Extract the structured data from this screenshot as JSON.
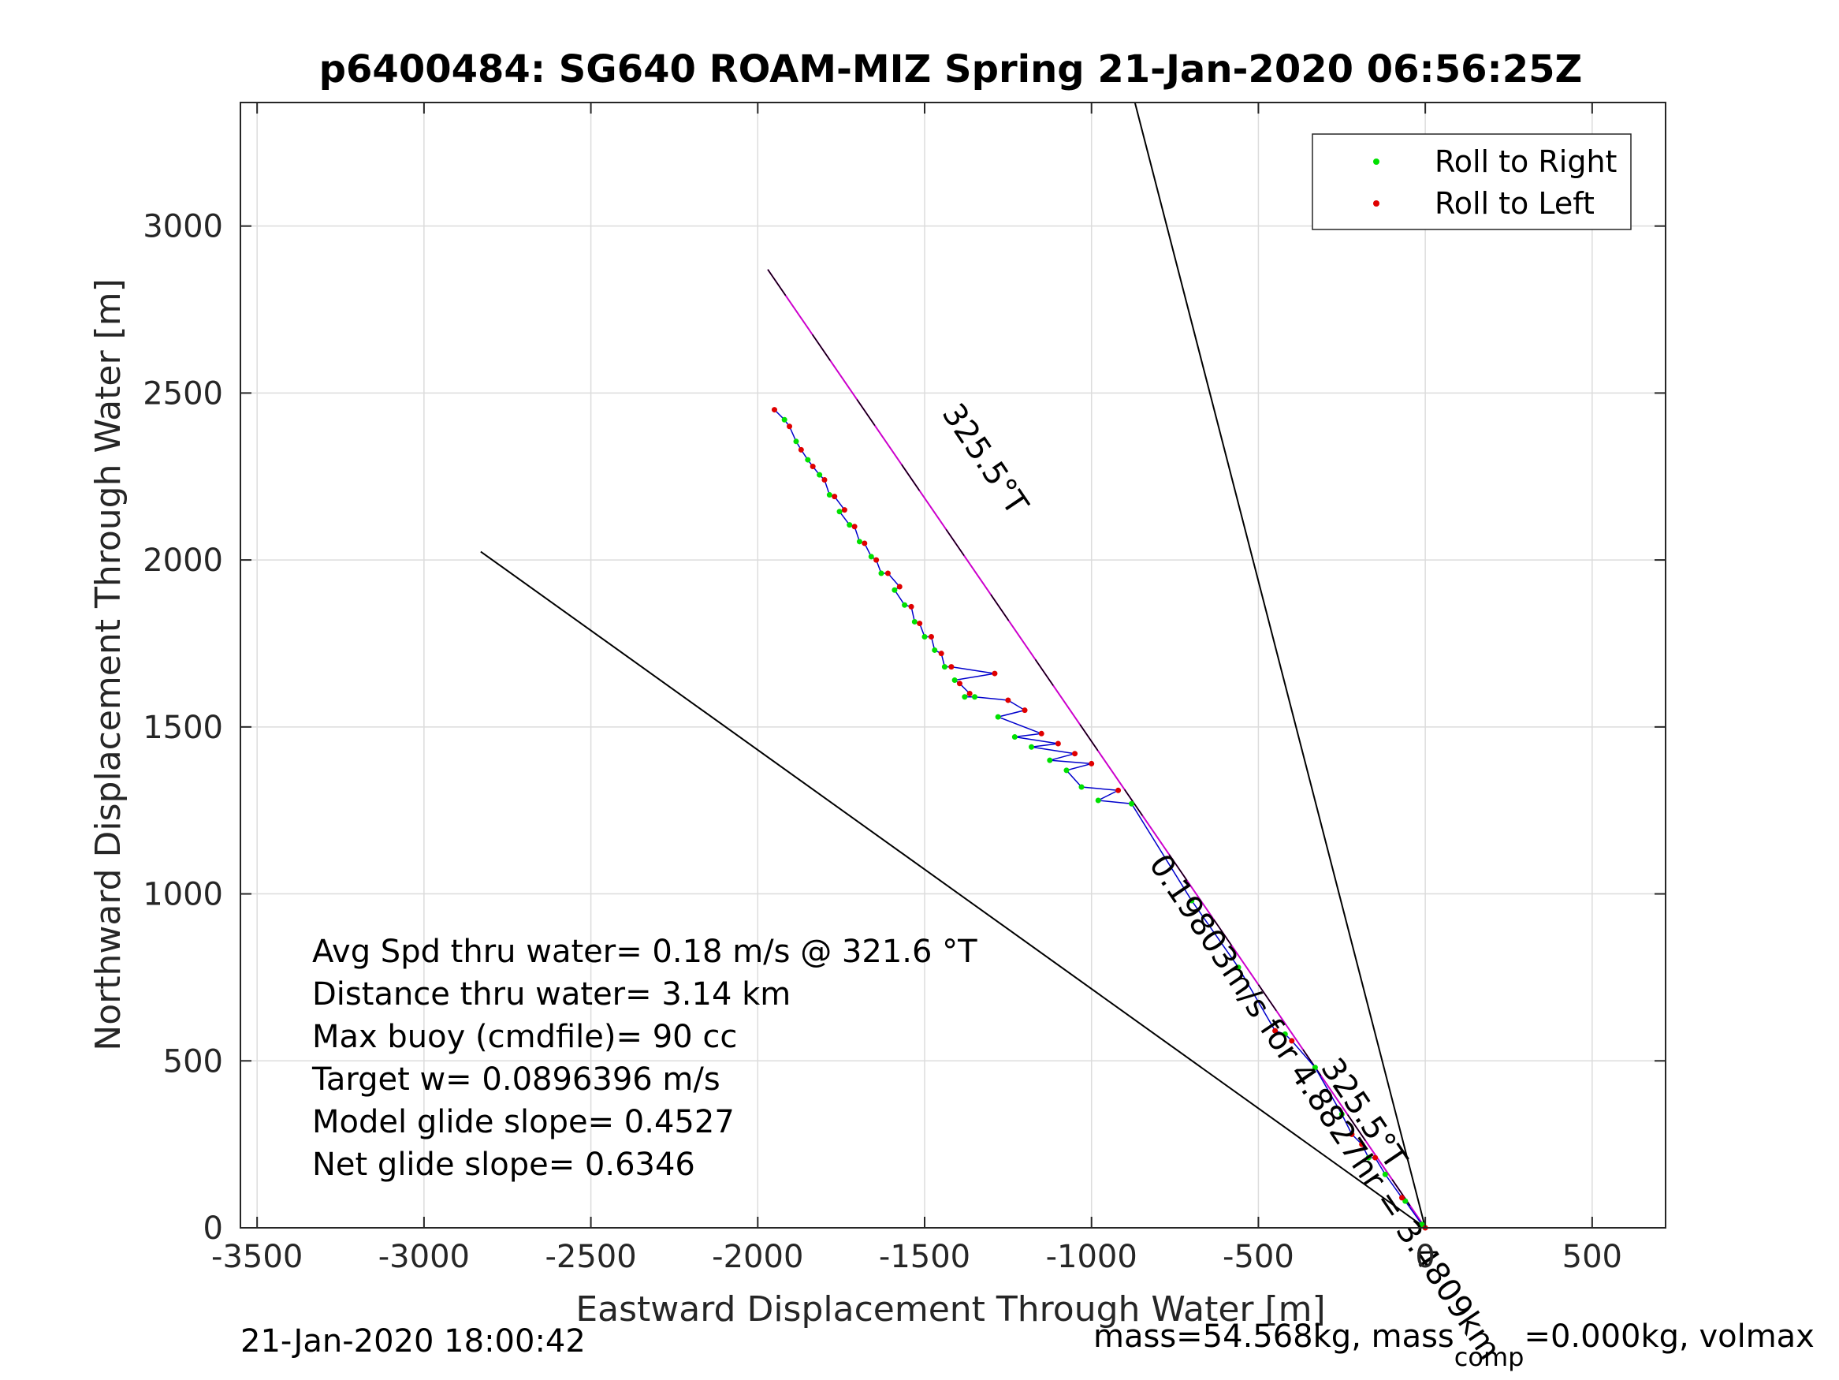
{
  "chart_data": {
    "type": "line",
    "title": "p6400484: SG640 ROAM-MIZ Spring 21-Jan-2020 06:56:25Z",
    "xlabel": "Eastward Displacement Through Water [m]",
    "ylabel": "Northward Displacement Through Water [m]",
    "xlim": [
      -3550,
      720
    ],
    "ylim": [
      0,
      3370
    ],
    "xticks": [
      -3500,
      -3000,
      -2500,
      -2000,
      -1500,
      -1000,
      -500,
      0,
      500
    ],
    "yticks": [
      0,
      500,
      1000,
      1500,
      2000,
      2500,
      3000
    ],
    "xtick_labels": [
      "-3500",
      "-3000",
      "-2500",
      "-2000",
      "-1500",
      "-1000",
      "-500",
      "0",
      "500"
    ],
    "ytick_labels": [
      "0",
      "500",
      "1000",
      "1500",
      "2000",
      "2500",
      "3000"
    ],
    "grid": true,
    "legend_position": "top-right",
    "legend": [
      {
        "label": "Roll to Right",
        "color": "#00e000"
      },
      {
        "label": "Roll to Left",
        "color": "#e00000"
      }
    ],
    "series": [
      {
        "name": "Roll to Right",
        "color": "#00e000",
        "x": [
          -1920,
          -1885,
          -1850,
          -1815,
          -1785,
          -1755,
          -1725,
          -1695,
          -1660,
          -1630,
          -1590,
          -1560,
          -1530,
          -1500,
          -1470,
          -1440,
          -1410,
          -1380,
          -1350,
          -1280,
          -1230,
          -1180,
          -1125,
          -1075,
          -1030,
          -980,
          -880,
          -700,
          -560,
          -420,
          -330,
          -250,
          -170,
          -120,
          -60,
          -10
        ],
        "y": [
          2420,
          2355,
          2300,
          2255,
          2195,
          2145,
          2105,
          2055,
          2010,
          1960,
          1910,
          1865,
          1815,
          1770,
          1730,
          1680,
          1640,
          1590,
          1590,
          1530,
          1470,
          1440,
          1400,
          1370,
          1320,
          1280,
          1270,
          980,
          780,
          580,
          480,
          340,
          210,
          160,
          80,
          10
        ]
      },
      {
        "name": "Roll to Left",
        "color": "#e00000",
        "x": [
          -1950,
          -1905,
          -1870,
          -1835,
          -1800,
          -1770,
          -1740,
          -1710,
          -1680,
          -1645,
          -1610,
          -1575,
          -1540,
          -1515,
          -1480,
          -1450,
          -1420,
          -1395,
          -1365,
          -1290,
          -1250,
          -1200,
          -1150,
          -1100,
          -1050,
          -1000,
          -920,
          -450,
          -400,
          -220,
          -190,
          -150,
          -70,
          0
        ],
        "y": [
          2450,
          2400,
          2330,
          2280,
          2240,
          2190,
          2150,
          2100,
          2050,
          2000,
          1960,
          1920,
          1860,
          1810,
          1770,
          1720,
          1680,
          1630,
          1600,
          1660,
          1580,
          1550,
          1480,
          1450,
          1420,
          1390,
          1310,
          590,
          560,
          280,
          250,
          210,
          90,
          0
        ]
      }
    ],
    "lines": [
      {
        "name": "",
        "color": "#000000",
        "x": [
          -2830,
          0
        ],
        "y": [
          2025,
          0
        ]
      },
      {
        "name": "",
        "color": "#000000",
        "x": [
          -870,
          0
        ],
        "y": [
          3370,
          0
        ]
      },
      {
        "name": "",
        "color": "#cc00cc",
        "x": [
          -1970,
          0
        ],
        "y": [
          2870,
          0
        ]
      },
      {
        "name": "",
        "color": "#000000",
        "x": [
          -1970,
          0
        ],
        "y": [
          2870,
          0
        ]
      }
    ],
    "annotations": [
      {
        "text": "325.5°T",
        "x": -1450,
        "y": 2440,
        "rotation": 56
      },
      {
        "text": "0.19803m/s for 4.8827hr = 3.4809km",
        "x": -830,
        "y": 1090,
        "rotation": 56
      },
      {
        "text": "325.5°T",
        "x": -315,
        "y": 480,
        "rotation": 56
      }
    ],
    "info_text": [
      "Avg Spd thru water=  0.18 m/s @ 321.6 °T",
      "Distance thru water=  3.14 km",
      "Max buoy (cmdfile)= 90 cc",
      "Target w= 0.0896396 m/s",
      "Model glide slope= 0.4527",
      "Net glide slope= 0.6346"
    ]
  },
  "footer": {
    "timestamp": "21-Jan-2020 18:00:42",
    "mass_prefix": "mass=54.568kg, mass",
    "mass_subscript": "comp",
    "mass_suffix": "=0.000kg, volmax"
  }
}
